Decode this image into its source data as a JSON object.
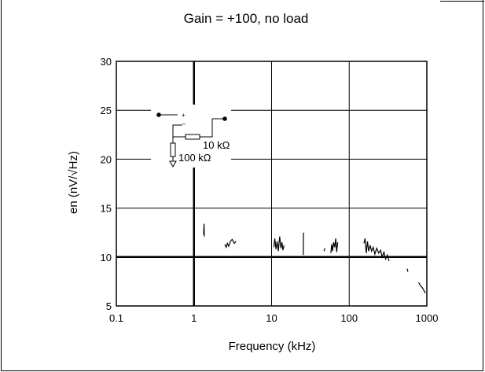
{
  "chart_data": {
    "type": "line",
    "title": "Gain = +100, no load",
    "xlabel": "Frequency (kHz)",
    "ylabel": "en (nV/√Hz)",
    "x_scale": "log",
    "xlim": [
      0.1,
      1000
    ],
    "ylim": [
      5,
      30
    ],
    "x_ticks": [
      0.1,
      1,
      10,
      100,
      1000
    ],
    "x_tick_labels": [
      "0.1",
      "1",
      "10",
      "100",
      "1000"
    ],
    "y_ticks": [
      5,
      10,
      15,
      20,
      25,
      30
    ],
    "y_tick_labels": [
      "5",
      "10",
      "15",
      "20",
      "25",
      "30"
    ],
    "grid": true,
    "inset_labels": [
      "10 kΩ",
      "100 kΩ"
    ],
    "series": [
      {
        "segments": [
          [
            [
              0.98,
              11.7
            ],
            [
              1.0,
              11.6
            ]
          ],
          [
            [
              1.33,
              12.3
            ],
            [
              1.35,
              13.4
            ],
            [
              1.36,
              12.1
            ]
          ],
          [
            [
              2.5,
              11.3
            ],
            [
              2.6,
              11.0
            ],
            [
              2.7,
              11.4
            ],
            [
              2.8,
              11.1
            ],
            [
              2.95,
              11.6
            ],
            [
              3.1,
              11.8
            ],
            [
              3.3,
              11.4
            ],
            [
              3.5,
              11.6
            ]
          ],
          [
            [
              10.7,
              11.0
            ],
            [
              11.0,
              11.9
            ],
            [
              11.4,
              10.8
            ],
            [
              11.8,
              11.6
            ],
            [
              12.2,
              10.6
            ],
            [
              12.7,
              12.1
            ],
            [
              13.2,
              10.9
            ],
            [
              13.6,
              11.5
            ],
            [
              14.0,
              10.7
            ],
            [
              14.5,
              11.2
            ]
          ],
          [
            [
              25.6,
              10.2
            ],
            [
              25.8,
              12.5
            ]
          ],
          [
            [
              47.5,
              10.6
            ],
            [
              48.5,
              10.9
            ]
          ],
          [
            [
              58.0,
              10.4
            ],
            [
              59.5,
              11.3
            ],
            [
              61.0,
              10.6
            ],
            [
              63.0,
              11.5
            ],
            [
              65.0,
              11.0
            ],
            [
              67.0,
              11.9
            ],
            [
              69.0,
              10.5
            ],
            [
              71.0,
              11.5
            ]
          ],
          [
            [
              155,
              11.4
            ],
            [
              160,
              11.9
            ],
            [
              166,
              10.4
            ],
            [
              172,
              11.6
            ],
            [
              178,
              10.6
            ],
            [
              186,
              11.2
            ],
            [
              194,
              10.6
            ],
            [
              204,
              11.0
            ],
            [
              214,
              10.3
            ],
            [
              226,
              10.9
            ],
            [
              240,
              10.4
            ],
            [
              254,
              10.7
            ],
            [
              266,
              10.0
            ],
            [
              280,
              10.5
            ],
            [
              295,
              9.8
            ],
            [
              310,
              10.2
            ],
            [
              326,
              9.6
            ]
          ],
          [
            [
              560,
              8.8
            ],
            [
              570,
              8.5
            ]
          ],
          [
            [
              785,
              7.4
            ],
            [
              810,
              7.2
            ],
            [
              840,
              7.0
            ],
            [
              870,
              6.9
            ],
            [
              900,
              6.7
            ],
            [
              930,
              6.5
            ],
            [
              960,
              6.3
            ]
          ]
        ]
      }
    ]
  }
}
